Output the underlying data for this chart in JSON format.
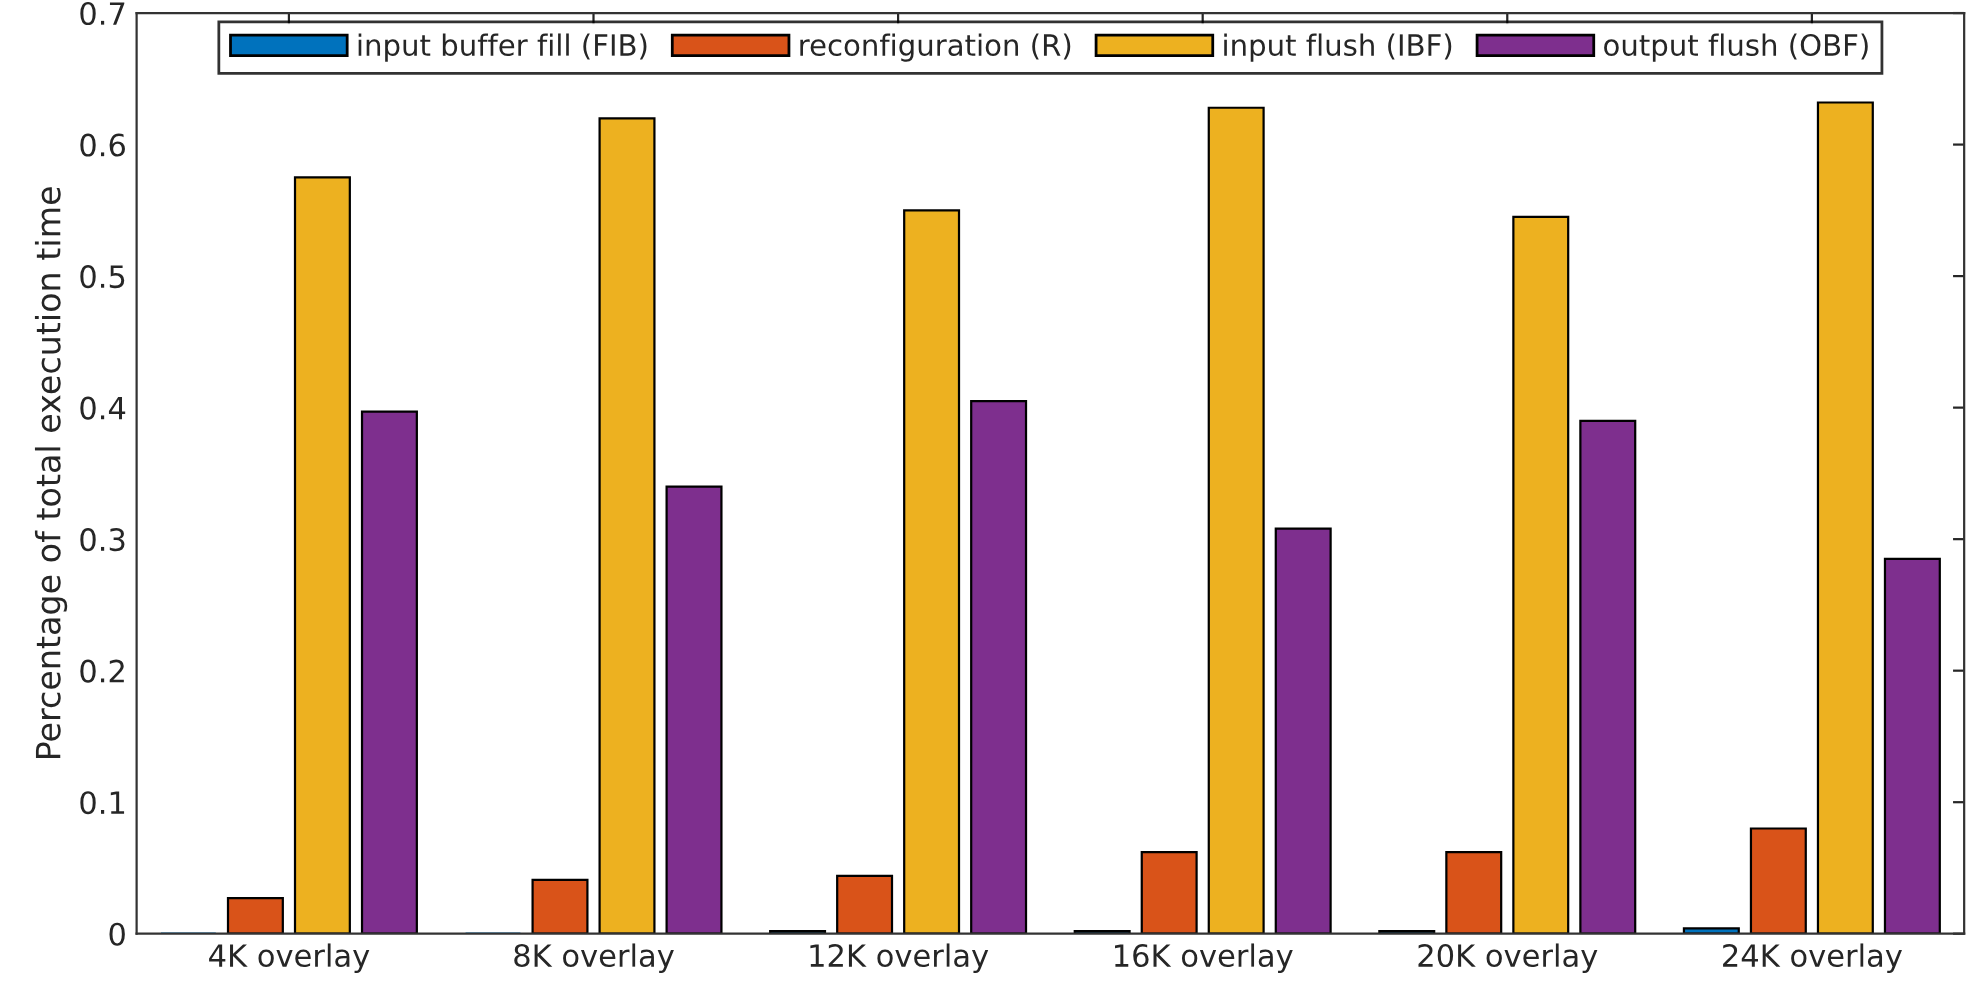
{
  "chart_data": {
    "type": "bar",
    "ylabel": "Percentage of total execution time",
    "categories": [
      "4K overlay",
      "8K overlay",
      "12K overlay",
      "16K overlay",
      "20K overlay",
      "24K overlay"
    ],
    "series": [
      {
        "name": "input buffer fill (FIB)",
        "color": "#0072bd",
        "values": [
          0,
          0,
          0.002,
          0.002,
          0.002,
          0.004
        ]
      },
      {
        "name": "reconfiguration (R)",
        "color": "#d95319",
        "values": [
          0.027,
          0.041,
          0.044,
          0.062,
          0.062,
          0.08
        ]
      },
      {
        "name": "input flush (IBF)",
        "color": "#edb120",
        "values": [
          0.575,
          0.62,
          0.55,
          0.628,
          0.545,
          0.632
        ]
      },
      {
        "name": "output flush (OBF)",
        "color": "#7e2f8e",
        "values": [
          0.397,
          0.34,
          0.405,
          0.308,
          0.39,
          0.285
        ]
      }
    ],
    "ylim": [
      0,
      0.7
    ],
    "yticks": [
      0,
      0.1,
      0.2,
      0.3,
      0.4,
      0.5,
      0.6,
      0.7
    ],
    "grid": false,
    "legend": "top"
  }
}
